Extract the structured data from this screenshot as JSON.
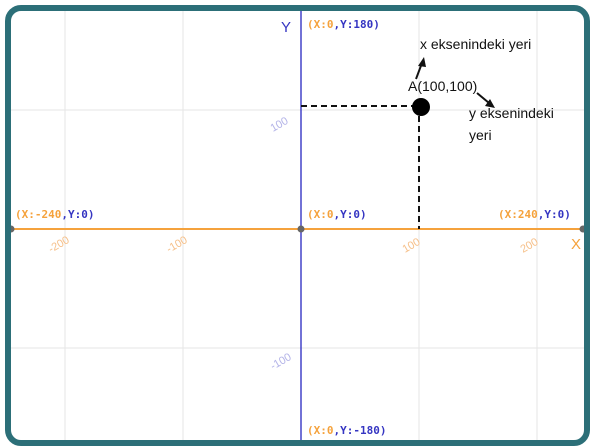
{
  "colors": {
    "frame": "#2c6f78",
    "grid": "#e6e6e6",
    "x_axis": "#f5a23c",
    "y_axis": "#4343c8",
    "orange_text": "#f5a23c",
    "blue_text": "#3535c2",
    "tick_x": "#f6c08a",
    "tick_y": "#b4b4e8"
  },
  "axes": {
    "x_title": "X",
    "y_title": "Y"
  },
  "ticks": {
    "x": [
      {
        "value": -200,
        "label": "-200"
      },
      {
        "value": -100,
        "label": "-100"
      },
      {
        "value": 100,
        "label": "100"
      },
      {
        "value": 200,
        "label": "200"
      }
    ],
    "y": [
      {
        "value": 100,
        "label": "100"
      },
      {
        "value": -100,
        "label": "-100"
      }
    ]
  },
  "coord_labels": {
    "top": {
      "x_part": "X:0",
      "y_part": "Y:180"
    },
    "origin": {
      "x_part": "X:0",
      "y_part": "Y:0"
    },
    "left": {
      "x_part": "X:-240",
      "y_part": "Y:0"
    },
    "right": {
      "x_part": "X:240",
      "y_part": "Y:0"
    },
    "bottom": {
      "x_part": "X:0",
      "y_part": "Y:-180"
    }
  },
  "point": {
    "label": "A(100,100)",
    "x": 100,
    "y": 100
  },
  "annotations": {
    "x_position": "x eksenindeki yeri",
    "y_position_line1": "y eksenindeki",
    "y_position_line2": "yeri"
  }
}
